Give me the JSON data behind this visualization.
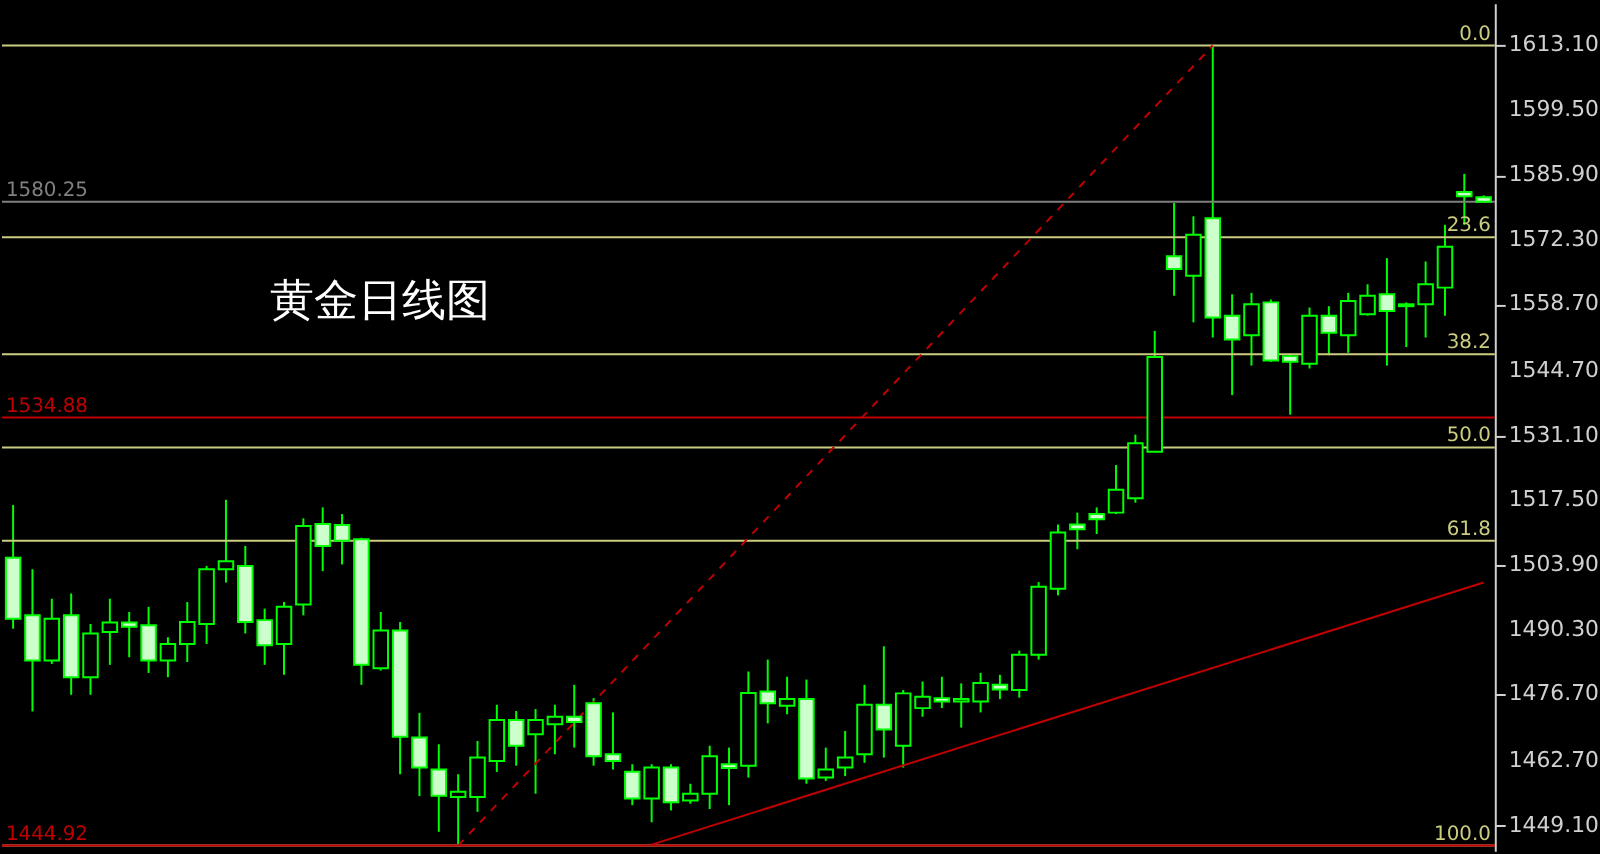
{
  "chart_data": {
    "type": "candlestick",
    "title": "黄金日线图",
    "color": "#00ff00",
    "categories": [
      null,
      null,
      null,
      null,
      null,
      null,
      null,
      null,
      null,
      null,
      null,
      null,
      null,
      null,
      null,
      null,
      null,
      null,
      null,
      null,
      null,
      null,
      null,
      null,
      null,
      null,
      null,
      null,
      null,
      null,
      null,
      null,
      null,
      null,
      null,
      null,
      null,
      null,
      null,
      null,
      null,
      null,
      null,
      null,
      null,
      null,
      null,
      null,
      null,
      null,
      null,
      null,
      null,
      null,
      null,
      null,
      null,
      null,
      null,
      null,
      null,
      null,
      null,
      null,
      null,
      null,
      null,
      null,
      null,
      null,
      null,
      null,
      null,
      null,
      null,
      null,
      null
    ],
    "ohlc": [
      [
        1505.4,
        1516.5,
        1490.5,
        1492.6
      ],
      [
        1493.3,
        1503.0,
        1473.1,
        1483.8
      ],
      [
        1483.8,
        1496.8,
        1483.1,
        1492.6
      ],
      [
        1493.3,
        1497.9,
        1476.6,
        1480.3
      ],
      [
        1480.3,
        1491.5,
        1476.6,
        1489.5
      ],
      [
        1489.8,
        1496.8,
        1482.9,
        1491.8
      ],
      [
        1491.8,
        1494.0,
        1484.5,
        1490.9
      ],
      [
        1491.2,
        1495.1,
        1481.2,
        1483.8
      ],
      [
        1483.8,
        1488.7,
        1480.3,
        1487.3
      ],
      [
        1487.3,
        1496.1,
        1483.5,
        1491.9
      ],
      [
        1491.5,
        1503.7,
        1487.3,
        1503.0
      ],
      [
        1503.0,
        1517.6,
        1500.2,
        1504.7
      ],
      [
        1503.7,
        1507.9,
        1489.5,
        1491.9
      ],
      [
        1492.3,
        1494.7,
        1482.9,
        1487.0
      ],
      [
        1487.3,
        1496.1,
        1480.8,
        1495.1
      ],
      [
        1495.6,
        1513.7,
        1493.3,
        1512.1
      ],
      [
        1512.5,
        1516.0,
        1502.6,
        1507.9
      ],
      [
        1512.3,
        1514.6,
        1504.0,
        1509.0
      ],
      [
        1509.3,
        1509.6,
        1478.7,
        1482.9
      ],
      [
        1482.2,
        1494.0,
        1481.7,
        1490.1
      ],
      [
        1490.1,
        1491.9,
        1459.9,
        1467.8
      ],
      [
        1467.6,
        1472.8,
        1455.3,
        1461.3
      ],
      [
        1460.9,
        1466.2,
        1447.8,
        1455.4
      ],
      [
        1455.1,
        1459.9,
        1444.92,
        1456.2
      ],
      [
        1455.1,
        1466.9,
        1452.0,
        1463.4
      ],
      [
        1462.7,
        1474.5,
        1460.4,
        1471.3
      ],
      [
        1471.3,
        1473.2,
        1461.7,
        1465.9
      ],
      [
        1468.3,
        1473.6,
        1455.8,
        1471.3
      ],
      [
        1470.4,
        1474.5,
        1464.1,
        1472.0
      ],
      [
        1472.0,
        1478.7,
        1465.5,
        1470.9
      ],
      [
        1474.8,
        1475.9,
        1461.7,
        1463.7
      ],
      [
        1464.1,
        1472.9,
        1460.9,
        1462.7
      ],
      [
        1460.4,
        1462.0,
        1453.4,
        1454.8
      ],
      [
        1454.8,
        1462.0,
        1449.8,
        1461.3
      ],
      [
        1461.3,
        1462.0,
        1452.3,
        1454.0
      ],
      [
        1454.4,
        1457.9,
        1453.7,
        1455.8
      ],
      [
        1455.8,
        1465.9,
        1452.6,
        1463.7
      ],
      [
        1462.0,
        1465.5,
        1453.4,
        1461.2
      ],
      [
        1461.7,
        1481.5,
        1459.2,
        1477.0
      ],
      [
        1477.3,
        1484.0,
        1470.6,
        1474.8
      ],
      [
        1474.3,
        1480.4,
        1472.5,
        1475.7
      ],
      [
        1475.7,
        1479.8,
        1457.9,
        1459.0
      ],
      [
        1459.2,
        1465.5,
        1458.5,
        1460.9
      ],
      [
        1461.3,
        1469.0,
        1459.5,
        1463.4
      ],
      [
        1464.1,
        1478.7,
        1462.3,
        1474.5
      ],
      [
        1474.5,
        1486.8,
        1463.4,
        1469.3
      ],
      [
        1465.9,
        1477.6,
        1461.3,
        1476.9
      ],
      [
        1473.8,
        1479.4,
        1472.0,
        1476.2
      ],
      [
        1475.9,
        1480.4,
        1473.8,
        1475.2
      ],
      [
        1475.2,
        1479.0,
        1469.7,
        1475.7
      ],
      [
        1475.2,
        1481.2,
        1472.9,
        1479.1
      ],
      [
        1478.7,
        1480.8,
        1475.7,
        1477.7
      ],
      [
        1477.6,
        1485.9,
        1476.0,
        1485.0
      ],
      [
        1485.0,
        1500.3,
        1484.0,
        1499.3
      ],
      [
        1498.9,
        1512.4,
        1497.5,
        1510.7
      ],
      [
        1512.4,
        1514.9,
        1507.2,
        1511.4
      ],
      [
        1514.6,
        1516.0,
        1510.4,
        1513.5
      ],
      [
        1514.9,
        1524.9,
        1514.6,
        1519.7
      ],
      [
        1517.9,
        1531.3,
        1517.0,
        1529.5
      ],
      [
        1527.7,
        1553.1,
        1527.7,
        1547.6
      ],
      [
        1568.8,
        1580.0,
        1560.5,
        1566.1
      ],
      [
        1564.7,
        1577.2,
        1554.9,
        1573.3
      ],
      [
        1576.8,
        1613.1,
        1551.7,
        1555.9
      ],
      [
        1556.3,
        1560.8,
        1539.6,
        1551.3
      ],
      [
        1552.2,
        1561.1,
        1545.8,
        1558.7
      ],
      [
        1559.1,
        1559.7,
        1546.6,
        1546.9
      ],
      [
        1547.8,
        1548.3,
        1535.5,
        1546.6
      ],
      [
        1546.2,
        1558.0,
        1545.2,
        1556.3
      ],
      [
        1556.3,
        1558.3,
        1548.0,
        1552.7
      ],
      [
        1552.2,
        1561.1,
        1548.5,
        1559.4
      ],
      [
        1556.6,
        1562.9,
        1556.3,
        1560.5
      ],
      [
        1560.8,
        1568.4,
        1545.8,
        1557.3
      ],
      [
        1558.3,
        1559.1,
        1549.7,
        1558.7
      ],
      [
        1558.7,
        1567.7,
        1551.7,
        1562.9
      ],
      [
        1562.2,
        1575.4,
        1556.3,
        1570.8
      ],
      [
        1582.3,
        1586.1,
        1575.4,
        1581.4
      ],
      [
        1581.2,
        1581.6,
        1580.25,
        1580.25
      ]
    ],
    "series": [
      {
        "type": "line",
        "color": "#c00000",
        "line_style": "dashed",
        "values": [
          null,
          null,
          null,
          null,
          null,
          null,
          null,
          null,
          null,
          null,
          null,
          null,
          null,
          null,
          null,
          null,
          null,
          null,
          null,
          null,
          null,
          null,
          null,
          1444.9,
          null,
          null,
          null,
          null,
          null,
          null,
          null,
          null,
          null,
          null,
          null,
          null,
          null,
          null,
          null,
          null,
          null,
          null,
          null,
          null,
          null,
          null,
          null,
          null,
          null,
          null,
          null,
          null,
          null,
          null,
          null,
          null,
          null,
          null,
          null,
          null,
          null,
          null,
          1613.1,
          null,
          null,
          null,
          null,
          null,
          null,
          null,
          null,
          null,
          null,
          null,
          null,
          null,
          null
        ]
      },
      {
        "type": "line",
        "color": "#c00000",
        "line_style": "solid",
        "values": [
          null,
          null,
          null,
          null,
          null,
          null,
          null,
          null,
          null,
          null,
          null,
          null,
          null,
          null,
          null,
          null,
          null,
          null,
          null,
          null,
          null,
          null,
          null,
          null,
          null,
          null,
          null,
          null,
          null,
          null,
          null,
          null,
          null,
          1445.1,
          null,
          null,
          null,
          null,
          null,
          null,
          null,
          null,
          null,
          null,
          null,
          null,
          null,
          null,
          null,
          null,
          null,
          null,
          null,
          null,
          null,
          null,
          null,
          null,
          null,
          null,
          null,
          null,
          null,
          null,
          null,
          null,
          null,
          null,
          null,
          null,
          null,
          null,
          null,
          null,
          null,
          null,
          1500.2
        ]
      }
    ],
    "ref_lines": [
      {
        "axis": "y",
        "value": 1613.1,
        "color": "#cccc80"
      },
      {
        "axis": "y",
        "value": 1572.8,
        "color": "#cccc80"
      },
      {
        "axis": "y",
        "value": 1548.2,
        "color": "#cccc80"
      },
      {
        "axis": "y",
        "value": 1528.6,
        "color": "#cccc80"
      },
      {
        "axis": "y",
        "value": 1509.0,
        "color": "#cccc80"
      },
      {
        "axis": "y",
        "value": 1444.92,
        "color": "#e8c080"
      },
      {
        "axis": "y",
        "value": 1580.25,
        "label": "1580.25",
        "color": "#808080"
      },
      {
        "axis": "y",
        "value": 1534.88,
        "label": "1534.88",
        "color": "#c00000"
      },
      {
        "axis": "y",
        "value": 1444.92,
        "label": "1444.92",
        "color": "#c00000"
      }
    ],
    "annotations": [
      {
        "text": "0.0",
        "y": 1613.1
      },
      {
        "text": "23.6",
        "y": 1572.8
      },
      {
        "text": "38.2",
        "y": 1548.2
      },
      {
        "text": "50.0",
        "y": 1528.6
      },
      {
        "text": "61.8",
        "y": 1509.0
      },
      {
        "text": "100.0",
        "y": 1444.9
      }
    ],
    "ylim": [
      1443.8,
      1622.0
    ],
    "yticks": [
      {
        "value": 1449.1,
        "label": "1449.10"
      },
      {
        "value": 1462.7,
        "label": "1462.70"
      },
      {
        "value": 1476.7,
        "label": "1476.70"
      },
      {
        "value": 1490.3,
        "label": "1490.30"
      },
      {
        "value": 1503.9,
        "label": "1503.90"
      },
      {
        "value": 1517.5,
        "label": "1517.50"
      },
      {
        "value": 1531.1,
        "label": "1531.10"
      },
      {
        "value": 1544.7,
        "label": "1544.70"
      },
      {
        "value": 1558.7,
        "label": "1558.70"
      },
      {
        "value": 1572.3,
        "label": "1572.30"
      },
      {
        "value": 1585.9,
        "label": "1585.90"
      },
      {
        "value": 1599.5,
        "label": "1599.50"
      },
      {
        "value": 1613.1,
        "label": "1613.10"
      }
    ],
    "tick_labels": "y",
    "grid": false
  }
}
